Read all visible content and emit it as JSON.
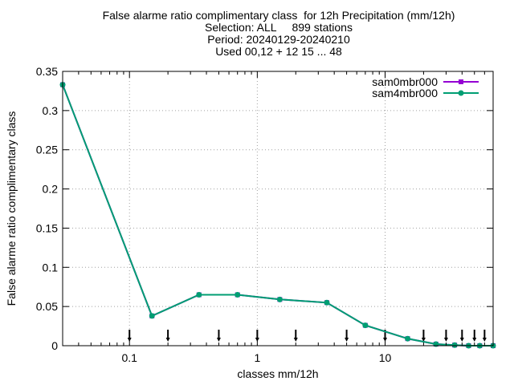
{
  "chart_data": {
    "type": "line",
    "title_lines": [
      "False alarme ratio complimentary class  for 12h Precipitation (mm/12h)",
      "Selection: ALL     899 stations",
      "Period: 20240129-20240210",
      "Used 00,12 + 12 15 ... 48"
    ],
    "xlabel": "classes mm/12h",
    "ylabel": "False alarme ratio complimentary class",
    "x_scale": "log",
    "xlim": [
      0.03,
      70
    ],
    "ylim": [
      0,
      0.35
    ],
    "grid": true,
    "legend_position": "top-right",
    "x_ticks": [
      {
        "value": 0.1,
        "label": "0.1"
      },
      {
        "value": 1,
        "label": "1"
      },
      {
        "value": 10,
        "label": "10"
      }
    ],
    "y_ticks": [
      {
        "value": 0,
        "label": "0"
      },
      {
        "value": 0.05,
        "label": "0.05"
      },
      {
        "value": 0.1,
        "label": "0.1"
      },
      {
        "value": 0.15,
        "label": "0.15"
      },
      {
        "value": 0.2,
        "label": "0.2"
      },
      {
        "value": 0.25,
        "label": "0.25"
      },
      {
        "value": 0.3,
        "label": "0.3"
      },
      {
        "value": 0.35,
        "label": "0.35"
      }
    ],
    "threshold_markers": [
      0.1,
      0.2,
      0.5,
      1,
      2,
      5,
      10,
      20,
      30,
      40,
      50,
      60
    ],
    "x": [
      0.03,
      0.15,
      0.35,
      0.7,
      1.5,
      3.5,
      7,
      15,
      25,
      35,
      45,
      55,
      70
    ],
    "series": [
      {
        "name": "sam0mbr000",
        "color": "#9400d3",
        "marker": "square",
        "values": [
          0.333,
          0.038,
          0.065,
          0.065,
          0.059,
          0.055,
          0.026,
          0.009,
          0.002,
          0.0008,
          0.0,
          0.0,
          0.0
        ]
      },
      {
        "name": "sam4mbr000",
        "color": "#009e73",
        "marker": "circle",
        "values": [
          0.333,
          0.038,
          0.065,
          0.065,
          0.059,
          0.055,
          0.026,
          0.009,
          0.002,
          0.0008,
          0.0,
          0.0,
          0.0
        ]
      }
    ]
  }
}
